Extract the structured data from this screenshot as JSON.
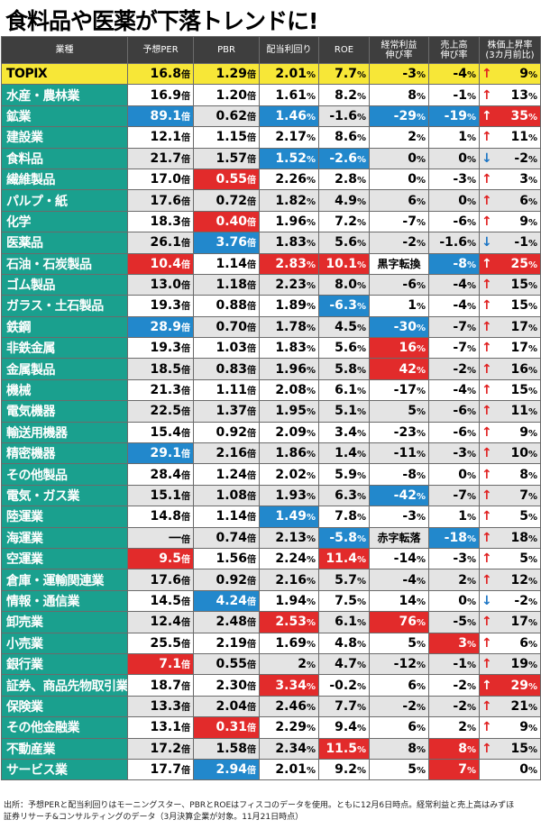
{
  "title": "食料品や医薬が下落トレンドに!",
  "headers": [
    "業種",
    "予想PER",
    "PBR",
    "配当利回り",
    "ROE",
    "経常利益\n伸び率",
    "売上高\n伸び率",
    "株価上昇率\n(3カ月前比)"
  ],
  "units": {
    "per": "倍",
    "pbr": "倍",
    "pct": "%"
  },
  "colors": {
    "sector": "#1aa08e",
    "topix": "#f7e737",
    "highlight_blue": "#2288cc",
    "highlight_red": "#e22b2b",
    "arrow_up": "#e02020",
    "arrow_down": "#1a74c4"
  },
  "rows": [
    {
      "name": "TOPIX",
      "per": "16.8",
      "pbr": "1.29",
      "div": "2.01",
      "roe": "7.7",
      "op": "-3",
      "op_unit": "%",
      "sales": "-4",
      "ret": "9",
      "dir": "up"
    },
    {
      "name": "水産・農林業",
      "per": "16.9",
      "pbr": "1.20",
      "div": "1.61",
      "roe": "8.2",
      "op": "8",
      "op_unit": "%",
      "sales": "-1",
      "ret": "13",
      "dir": "up"
    },
    {
      "name": "鉱業",
      "per": "89.1",
      "pbr": "0.62",
      "div": "1.46",
      "roe": "-1.6",
      "op": "-29",
      "op_unit": "%",
      "sales": "-19",
      "ret": "35",
      "dir": "up",
      "hl": {
        "per": "b",
        "div": "b",
        "op": "b",
        "sales": "b",
        "ret": "r"
      }
    },
    {
      "name": "建設業",
      "per": "12.1",
      "pbr": "1.15",
      "div": "2.17",
      "roe": "8.6",
      "op": "2",
      "op_unit": "%",
      "sales": "1",
      "ret": "11",
      "dir": "up"
    },
    {
      "name": "食料品",
      "per": "21.7",
      "pbr": "1.57",
      "div": "1.52",
      "roe": "-2.6",
      "op": "0",
      "op_unit": "%",
      "sales": "0",
      "ret": "-2",
      "dir": "down",
      "hl": {
        "div": "b",
        "roe": "b"
      }
    },
    {
      "name": "繊維製品",
      "per": "17.0",
      "pbr": "0.55",
      "div": "2.26",
      "roe": "2.8",
      "op": "0",
      "op_unit": "%",
      "sales": "-3",
      "ret": "3",
      "dir": "up",
      "hl": {
        "pbr": "r"
      }
    },
    {
      "name": "パルプ・紙",
      "per": "17.6",
      "pbr": "0.72",
      "div": "1.82",
      "roe": "4.9",
      "op": "6",
      "op_unit": "%",
      "sales": "0",
      "ret": "6",
      "dir": "up"
    },
    {
      "name": "化学",
      "per": "18.3",
      "pbr": "0.40",
      "div": "1.96",
      "roe": "7.2",
      "op": "-7",
      "op_unit": "%",
      "sales": "-6",
      "ret": "9",
      "dir": "up",
      "hl": {
        "pbr": "r"
      }
    },
    {
      "name": "医薬品",
      "per": "26.1",
      "pbr": "3.76",
      "div": "1.83",
      "roe": "5.6",
      "op": "-2",
      "op_unit": "%",
      "sales": "-1.6",
      "ret": "-1",
      "dir": "down",
      "hl": {
        "pbr": "b"
      }
    },
    {
      "name": "石油・石炭製品",
      "per": "10.4",
      "pbr": "1.14",
      "div": "2.83",
      "roe": "10.1",
      "op": "黒字転換",
      "op_unit": "",
      "sales": "-8",
      "ret": "25",
      "dir": "up",
      "hl": {
        "per": "r",
        "div": "r",
        "roe": "r",
        "sales": "b",
        "ret": "r"
      }
    },
    {
      "name": "ゴム製品",
      "per": "13.0",
      "pbr": "1.18",
      "div": "2.23",
      "roe": "8.0",
      "op": "-6",
      "op_unit": "%",
      "sales": "-4",
      "ret": "15",
      "dir": "up"
    },
    {
      "name": "ガラス・土石製品",
      "per": "19.3",
      "pbr": "0.88",
      "div": "1.89",
      "roe": "-6.3",
      "op": "1",
      "op_unit": "%",
      "sales": "-4",
      "ret": "15",
      "dir": "up",
      "hl": {
        "roe": "b"
      }
    },
    {
      "name": "鉄鋼",
      "per": "28.9",
      "pbr": "0.70",
      "div": "1.78",
      "roe": "4.5",
      "op": "-30",
      "op_unit": "%",
      "sales": "-7",
      "ret": "17",
      "dir": "up",
      "hl": {
        "per": "b",
        "op": "b"
      }
    },
    {
      "name": "非鉄金属",
      "per": "19.3",
      "pbr": "1.03",
      "div": "1.83",
      "roe": "5.6",
      "op": "16",
      "op_unit": "%",
      "sales": "-7",
      "ret": "17",
      "dir": "up",
      "hl": {
        "op": "r"
      }
    },
    {
      "name": "金属製品",
      "per": "18.5",
      "pbr": "0.83",
      "div": "1.96",
      "roe": "5.8",
      "op": "42",
      "op_unit": "%",
      "sales": "-2",
      "ret": "16",
      "dir": "up",
      "hl": {
        "op": "r"
      }
    },
    {
      "name": "機械",
      "per": "21.3",
      "pbr": "1.11",
      "div": "2.08",
      "roe": "6.1",
      "op": "-17",
      "op_unit": "%",
      "sales": "-4",
      "ret": "15",
      "dir": "up"
    },
    {
      "name": "電気機器",
      "per": "22.5",
      "pbr": "1.37",
      "div": "1.95",
      "roe": "5.1",
      "op": "5",
      "op_unit": "%",
      "sales": "-6",
      "ret": "11",
      "dir": "up"
    },
    {
      "name": "輸送用機器",
      "per": "15.4",
      "pbr": "0.92",
      "div": "2.09",
      "roe": "3.4",
      "op": "-23",
      "op_unit": "%",
      "sales": "-6",
      "ret": "9",
      "dir": "up"
    },
    {
      "name": "精密機器",
      "per": "29.1",
      "pbr": "2.16",
      "div": "1.86",
      "roe": "1.4",
      "op": "-11",
      "op_unit": "%",
      "sales": "-3",
      "ret": "10",
      "dir": "up",
      "hl": {
        "per": "b"
      }
    },
    {
      "name": "その他製品",
      "per": "28.4",
      "pbr": "1.24",
      "div": "2.02",
      "roe": "5.9",
      "op": "-8",
      "op_unit": "%",
      "sales": "0",
      "ret": "8",
      "dir": "up"
    },
    {
      "name": "電気・ガス業",
      "per": "15.1",
      "pbr": "1.08",
      "div": "1.93",
      "roe": "6.3",
      "op": "-42",
      "op_unit": "%",
      "sales": "-7",
      "ret": "7",
      "dir": "up",
      "hl": {
        "op": "b"
      }
    },
    {
      "name": "陸運業",
      "per": "14.8",
      "pbr": "1.14",
      "div": "1.49",
      "roe": "7.8",
      "op": "-3",
      "op_unit": "%",
      "sales": "1",
      "ret": "5",
      "dir": "up",
      "hl": {
        "div": "b"
      }
    },
    {
      "name": "海運業",
      "per": "一",
      "pbr": "0.74",
      "div": "2.13",
      "roe": "-5.8",
      "op": "赤字転落",
      "op_unit": "",
      "sales": "-18",
      "ret": "18",
      "dir": "up",
      "hl": {
        "roe": "b",
        "sales": "b"
      }
    },
    {
      "name": "空運業",
      "per": "9.5",
      "pbr": "1.56",
      "div": "2.24",
      "roe": "11.4",
      "op": "-14",
      "op_unit": "%",
      "sales": "-3",
      "ret": "5",
      "dir": "up",
      "hl": {
        "per": "r",
        "roe": "r"
      }
    },
    {
      "name": "倉庫・運輸関連業",
      "per": "17.6",
      "pbr": "0.92",
      "div": "2.16",
      "roe": "5.7",
      "op": "-4",
      "op_unit": "%",
      "sales": "2",
      "ret": "12",
      "dir": "up"
    },
    {
      "name": "情報・通信業",
      "per": "14.5",
      "pbr": "4.24",
      "div": "1.94",
      "roe": "7.5",
      "op": "14",
      "op_unit": "%",
      "sales": "0",
      "ret": "-2",
      "dir": "down",
      "hl": {
        "pbr": "b"
      }
    },
    {
      "name": "卸売業",
      "per": "12.4",
      "pbr": "2.48",
      "div": "2.53",
      "roe": "6.1",
      "op": "76",
      "op_unit": "%",
      "sales": "-5",
      "ret": "17",
      "dir": "up",
      "hl": {
        "div": "r",
        "op": "r"
      }
    },
    {
      "name": "小売業",
      "per": "25.5",
      "pbr": "2.19",
      "div": "1.69",
      "roe": "4.8",
      "op": "5",
      "op_unit": "%",
      "sales": "3",
      "ret": "6",
      "dir": "up",
      "hl": {
        "sales": "r"
      }
    },
    {
      "name": "銀行業",
      "per": "7.1",
      "pbr": "0.55",
      "div": "2",
      "roe": "4.7",
      "op": "-12",
      "op_unit": "%",
      "sales": "-1",
      "ret": "19",
      "dir": "up",
      "hl": {
        "per": "r"
      }
    },
    {
      "name": "証券、商品先物取引業",
      "per": "18.7",
      "pbr": "2.30",
      "div": "3.34",
      "roe": "-0.2",
      "op": "6",
      "op_unit": "%",
      "sales": "-2",
      "ret": "29",
      "dir": "up",
      "hl": {
        "div": "r",
        "ret": "r"
      }
    },
    {
      "name": "保険業",
      "per": "13.3",
      "pbr": "2.04",
      "div": "2.46",
      "roe": "7.7",
      "op": "-2",
      "op_unit": "%",
      "sales": "-2",
      "ret": "21",
      "dir": "up"
    },
    {
      "name": "その他金融業",
      "per": "13.1",
      "pbr": "0.31",
      "div": "2.29",
      "roe": "9.4",
      "op": "6",
      "op_unit": "%",
      "sales": "2",
      "ret": "9",
      "dir": "up",
      "hl": {
        "pbr": "r"
      }
    },
    {
      "name": "不動産業",
      "per": "17.2",
      "pbr": "1.58",
      "div": "2.34",
      "roe": "11.5",
      "op": "8",
      "op_unit": "%",
      "sales": "8",
      "ret": "15",
      "dir": "up",
      "hl": {
        "roe": "r",
        "sales": "r"
      }
    },
    {
      "name": "サービス業",
      "per": "17.7",
      "pbr": "2.94",
      "div": "2.01",
      "roe": "9.2",
      "op": "5",
      "op_unit": "%",
      "sales": "7",
      "ret": "0",
      "dir": "none",
      "hl": {
        "pbr": "b",
        "sales": "r"
      }
    }
  ],
  "footer": [
    "出所：予想PERと配当利回りはモーニングスター、PBRとROEはフィスコのデータを使用。ともに12月6日時点。経常利益と売上高はみずほ",
    "証券リサーチ&コンサルティングのデータ（3月決算企業が対象。11月21日時点）"
  ]
}
